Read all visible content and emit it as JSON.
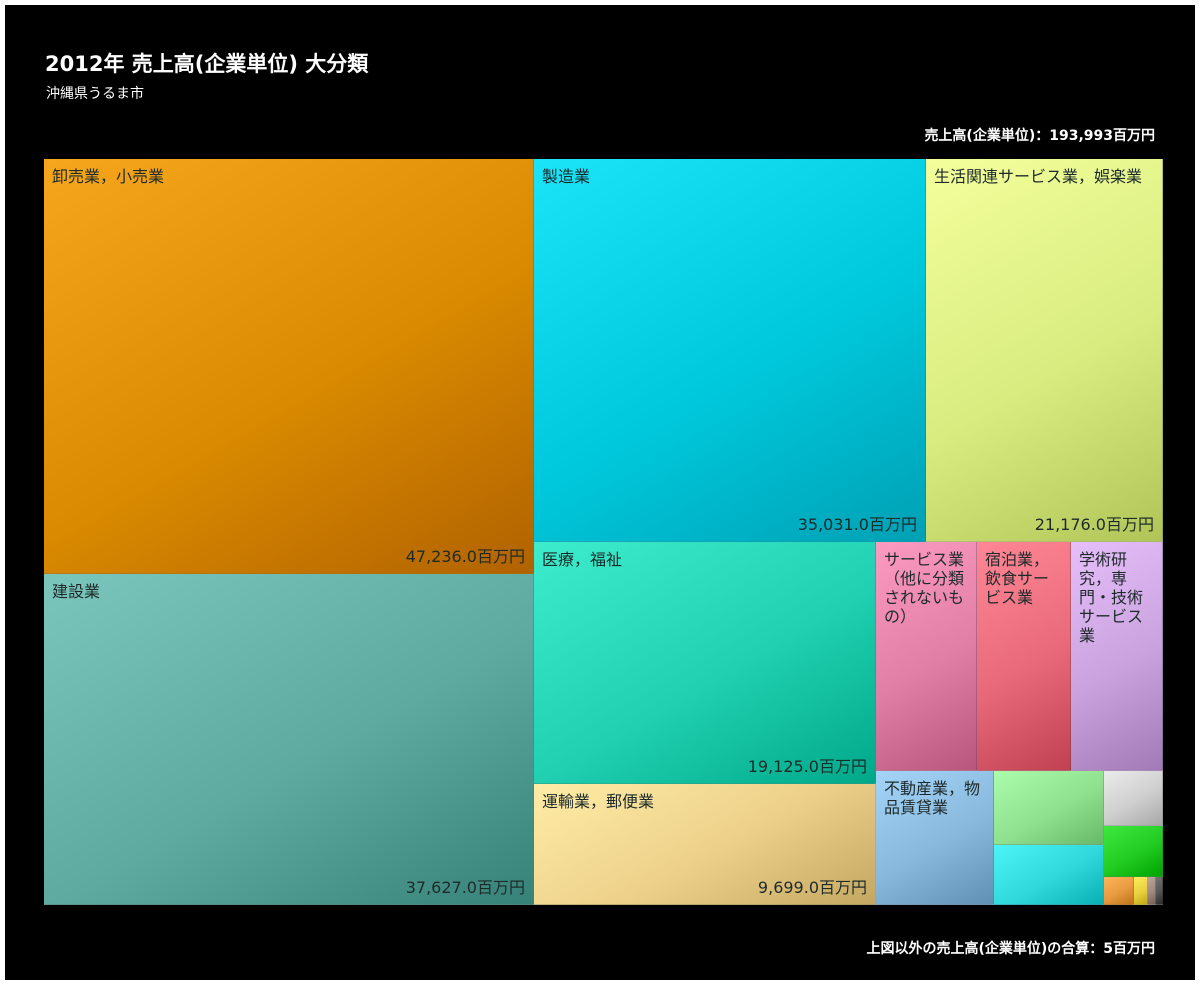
{
  "header": {
    "title": "2012年 売上高(企業単位) 大分類",
    "subtitle": "沖縄県うるま市",
    "total_label": "売上高(企業単位)：193,993百万円"
  },
  "footer": {
    "others_label": "上図以外の売上高(企業単位)の合算：5百万円"
  },
  "chart_data": {
    "type": "treemap",
    "unit": "百万円",
    "items": [
      {
        "name": "卸売業，小売業",
        "value": 47236.0,
        "value_label": "47,236.0百万円",
        "color": "#d98a00"
      },
      {
        "name": "建設業",
        "value": 37627.0,
        "value_label": "37,627.0百万円",
        "color": "#5faaa0"
      },
      {
        "name": "製造業",
        "value": 35031.0,
        "value_label": "35,031.0百万円",
        "color": "#00c8dc"
      },
      {
        "name": "生活関連サービス業，娯楽業",
        "value": 21176.0,
        "value_label": "21,176.0百万円",
        "color": "#d8ec80"
      },
      {
        "name": "医療，福祉",
        "value": 19125.0,
        "value_label": "19,125.0百万円",
        "color": "#20d0b0"
      },
      {
        "name": "運輸業，郵便業",
        "value": 9699.0,
        "value_label": "9,699.0百万円",
        "color": "#ecd08a"
      },
      {
        "name": "サービス業（他に分類されないもの）",
        "value_label": "",
        "color": "#e07ea6"
      },
      {
        "name": "宿泊業，飲食サービス業",
        "value_label": "",
        "color": "#e86a7a"
      },
      {
        "name": "学術研究，専門・技術サービス業",
        "value_label": "",
        "color": "#c9a2de"
      },
      {
        "name": "不動産業，物品賃貸業",
        "value_label": "",
        "color": "#88b8dc"
      },
      {
        "name": "",
        "value_label": "",
        "color": "#8fe08f"
      },
      {
        "name": "",
        "value_label": "",
        "color": "#30d8dc"
      },
      {
        "name": "",
        "value_label": "",
        "color": "#cfcfcf"
      },
      {
        "name": "",
        "value_label": "",
        "color": "#22cc22"
      },
      {
        "name": "",
        "value_label": "",
        "color": "#e89a40"
      },
      {
        "name": "",
        "value_label": "",
        "color": "#e8d040"
      },
      {
        "name": "",
        "value_label": "",
        "color": "#a08a80"
      },
      {
        "name": "",
        "value_label": "",
        "color": "#555555"
      }
    ]
  }
}
